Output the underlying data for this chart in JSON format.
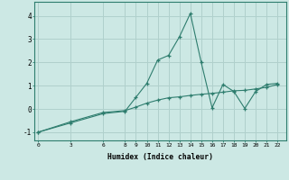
{
  "xlabel": "Humidex (Indice chaleur)",
  "x_ticks": [
    0,
    3,
    6,
    8,
    9,
    10,
    11,
    12,
    13,
    14,
    15,
    16,
    17,
    18,
    19,
    20,
    21,
    22
  ],
  "line1_x": [
    0,
    3,
    6,
    8,
    9,
    10,
    11,
    12,
    13,
    14,
    15,
    16,
    17,
    18,
    19,
    20,
    21,
    22
  ],
  "line1_y": [
    -1.0,
    -0.6,
    -0.2,
    -0.1,
    0.5,
    1.1,
    2.1,
    2.3,
    3.1,
    4.1,
    2.0,
    0.05,
    1.05,
    0.75,
    0.02,
    0.75,
    1.05,
    1.1
  ],
  "line2_x": [
    0,
    3,
    6,
    8,
    9,
    10,
    11,
    12,
    13,
    14,
    15,
    16,
    17,
    18,
    19,
    20,
    21,
    22
  ],
  "line2_y": [
    -1.0,
    -0.55,
    -0.15,
    -0.07,
    0.08,
    0.25,
    0.38,
    0.48,
    0.52,
    0.58,
    0.63,
    0.67,
    0.72,
    0.78,
    0.8,
    0.86,
    0.93,
    1.05
  ],
  "line_color": "#2e7d6e",
  "bg_color": "#cce8e4",
  "grid_color": "#b0d0cc",
  "ylim": [
    -1.35,
    4.6
  ],
  "yticks": [
    -1,
    0,
    1,
    2,
    3,
    4
  ],
  "xlim": [
    -0.3,
    22.8
  ]
}
